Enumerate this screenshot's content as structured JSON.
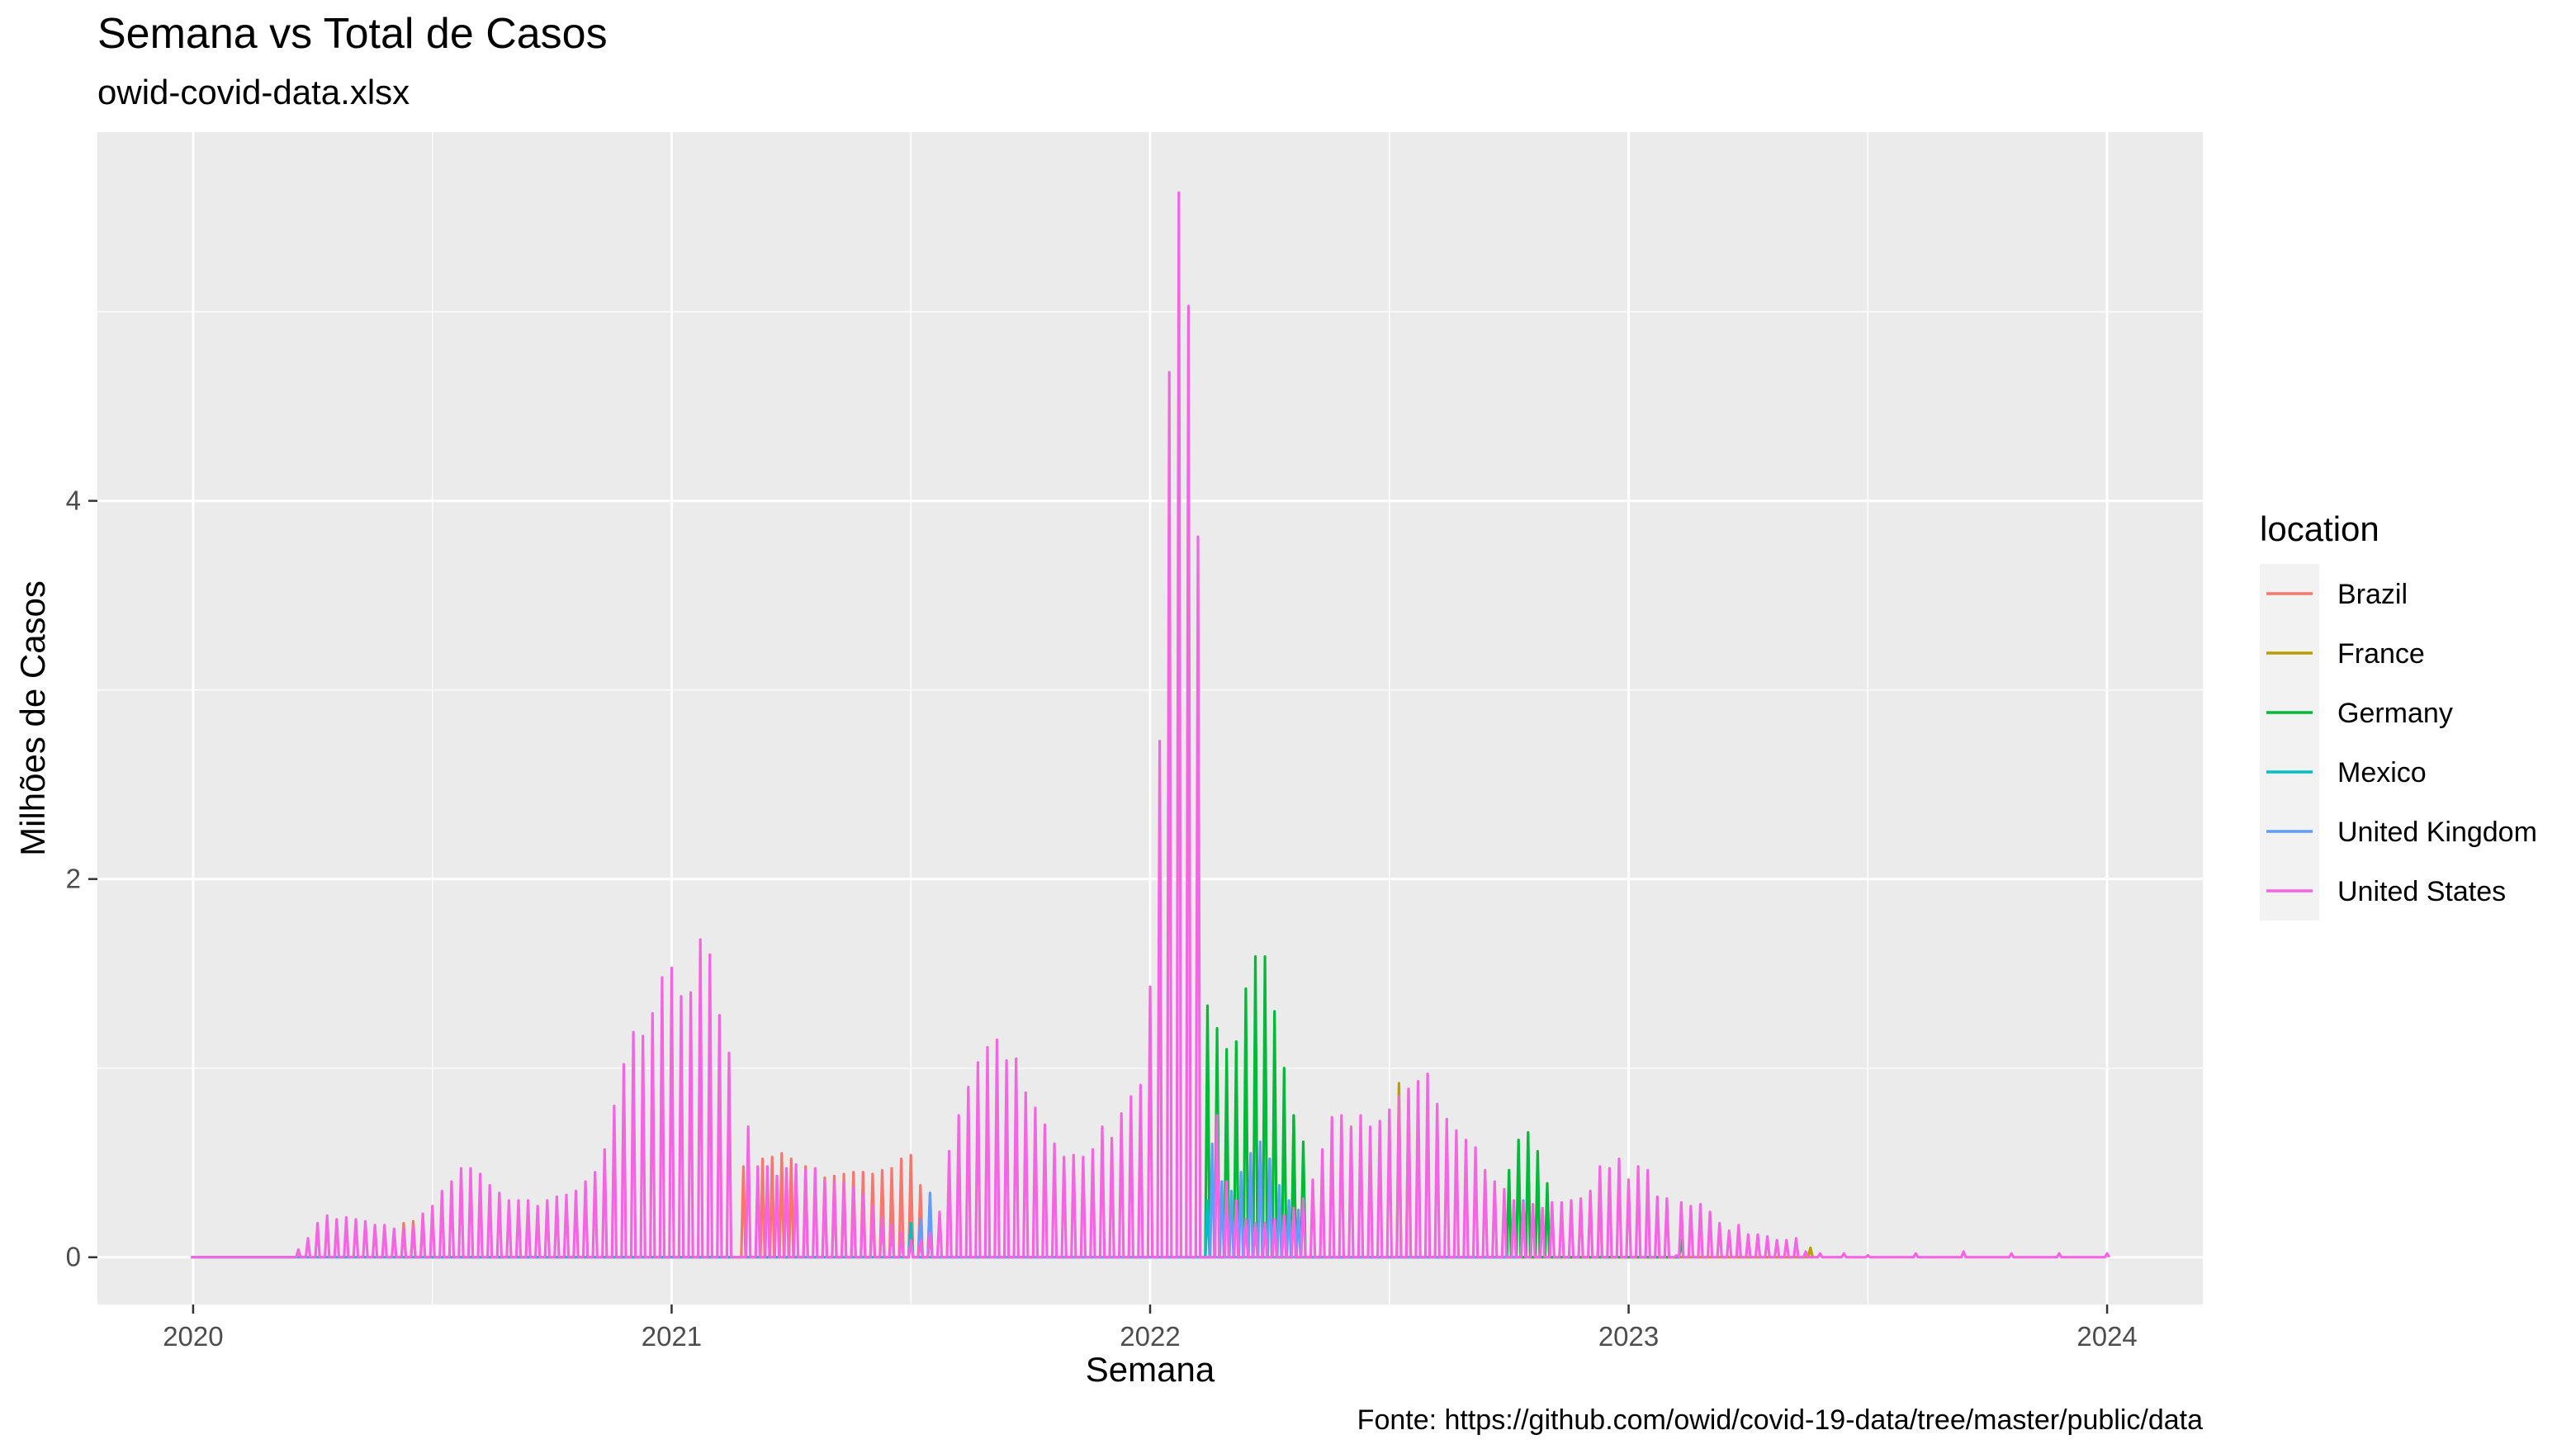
{
  "chart_data": {
    "type": "line",
    "title": "Semana vs Total de Casos",
    "subtitle": "owid-covid-data.xlsx",
    "xlabel": "Semana",
    "ylabel": "Milhões de Casos",
    "caption": "Fonte: https://github.com/owid/covid-19-data/tree/master/public/data",
    "x_ticks": [
      "2020",
      "2021",
      "2022",
      "2023",
      "2024"
    ],
    "y_ticks": [
      "0",
      "2",
      "4"
    ],
    "xlim": [
      2019.8,
      2024.2
    ],
    "ylim": [
      -0.25,
      5.95
    ],
    "grid": true,
    "legend": {
      "title": "location",
      "position": "right"
    },
    "x_unit": "year",
    "notes": "weekly totals; each week drawn as a spike from 0 to the weekly value and back",
    "series": [
      {
        "name": "Brazil",
        "color": "#F8766D",
        "points": [
          [
            2020.44,
            0.18
          ],
          [
            2020.46,
            0.19
          ],
          [
            2020.48,
            0.2
          ],
          [
            2021.15,
            0.48
          ],
          [
            2021.19,
            0.52
          ],
          [
            2021.21,
            0.53
          ],
          [
            2021.23,
            0.55
          ],
          [
            2021.25,
            0.52
          ],
          [
            2021.28,
            0.48
          ],
          [
            2021.32,
            0.42
          ],
          [
            2021.34,
            0.43
          ],
          [
            2021.36,
            0.44
          ],
          [
            2021.38,
            0.45
          ],
          [
            2021.4,
            0.45
          ],
          [
            2021.42,
            0.44
          ],
          [
            2021.44,
            0.46
          ],
          [
            2021.46,
            0.47
          ],
          [
            2021.48,
            0.52
          ],
          [
            2021.5,
            0.54
          ],
          [
            2021.52,
            0.38
          ],
          [
            2021.54,
            0.33
          ]
        ]
      },
      {
        "name": "France",
        "color": "#B79F00",
        "points": [
          [
            2022.25,
            0.52
          ],
          [
            2022.3,
            0.75
          ],
          [
            2022.52,
            0.92
          ],
          [
            2022.54,
            0.88
          ],
          [
            2022.94,
            0.4
          ],
          [
            2023.38,
            0.05
          ]
        ]
      },
      {
        "name": "Germany",
        "color": "#00BA38",
        "points": [
          [
            2022.12,
            1.33
          ],
          [
            2022.14,
            1.21
          ],
          [
            2022.16,
            1.1
          ],
          [
            2022.18,
            1.14
          ],
          [
            2022.2,
            1.42
          ],
          [
            2022.22,
            1.59
          ],
          [
            2022.24,
            1.59
          ],
          [
            2022.26,
            1.3
          ],
          [
            2022.28,
            1.0
          ],
          [
            2022.3,
            0.75
          ],
          [
            2022.32,
            0.61
          ],
          [
            2022.75,
            0.46
          ],
          [
            2022.77,
            0.62
          ],
          [
            2022.79,
            0.66
          ],
          [
            2022.81,
            0.56
          ],
          [
            2022.83,
            0.39
          ],
          [
            2023.11,
            0.09
          ]
        ]
      },
      {
        "name": "Mexico",
        "color": "#00BFC4",
        "points": [
          [
            2020.0,
            0.0
          ],
          [
            2021.5,
            0.18
          ],
          [
            2022.12,
            0.3
          ]
        ]
      },
      {
        "name": "United Kingdom",
        "color": "#619CFF",
        "points": [
          [
            2021.52,
            0.2
          ],
          [
            2021.54,
            0.34
          ],
          [
            2022.13,
            0.6
          ],
          [
            2022.15,
            0.4
          ],
          [
            2022.17,
            0.35
          ],
          [
            2022.19,
            0.45
          ],
          [
            2022.21,
            0.55
          ],
          [
            2022.23,
            0.61
          ],
          [
            2022.25,
            0.52
          ],
          [
            2022.27,
            0.38
          ],
          [
            2022.29,
            0.3
          ],
          [
            2022.31,
            0.25
          ],
          [
            2022.78,
            0.3
          ]
        ]
      },
      {
        "name": "United States",
        "color": "#F564E3",
        "points": [
          [
            2020.0,
            0.0
          ],
          [
            2020.1,
            0.0
          ],
          [
            2020.2,
            0.0
          ],
          [
            2020.22,
            0.04
          ],
          [
            2020.24,
            0.1
          ],
          [
            2020.26,
            0.18
          ],
          [
            2020.28,
            0.22
          ],
          [
            2020.3,
            0.2
          ],
          [
            2020.32,
            0.21
          ],
          [
            2020.34,
            0.2
          ],
          [
            2020.36,
            0.19
          ],
          [
            2020.38,
            0.17
          ],
          [
            2020.4,
            0.17
          ],
          [
            2020.42,
            0.15
          ],
          [
            2020.44,
            0.15
          ],
          [
            2020.46,
            0.16
          ],
          [
            2020.48,
            0.23
          ],
          [
            2020.5,
            0.27
          ],
          [
            2020.52,
            0.35
          ],
          [
            2020.54,
            0.4
          ],
          [
            2020.56,
            0.47
          ],
          [
            2020.58,
            0.47
          ],
          [
            2020.6,
            0.44
          ],
          [
            2020.62,
            0.38
          ],
          [
            2020.64,
            0.34
          ],
          [
            2020.66,
            0.3
          ],
          [
            2020.68,
            0.3
          ],
          [
            2020.7,
            0.3
          ],
          [
            2020.72,
            0.27
          ],
          [
            2020.74,
            0.3
          ],
          [
            2020.76,
            0.32
          ],
          [
            2020.78,
            0.33
          ],
          [
            2020.8,
            0.35
          ],
          [
            2020.82,
            0.4
          ],
          [
            2020.84,
            0.45
          ],
          [
            2020.86,
            0.57
          ],
          [
            2020.88,
            0.8
          ],
          [
            2020.9,
            1.02
          ],
          [
            2020.92,
            1.19
          ],
          [
            2020.94,
            1.17
          ],
          [
            2020.96,
            1.29
          ],
          [
            2020.98,
            1.48
          ],
          [
            2021.0,
            1.53
          ],
          [
            2021.02,
            1.38
          ],
          [
            2021.04,
            1.4
          ],
          [
            2021.06,
            1.68
          ],
          [
            2021.08,
            1.6
          ],
          [
            2021.1,
            1.28
          ],
          [
            2021.12,
            1.08
          ],
          [
            2021.14,
            0.0
          ],
          [
            2021.16,
            0.69
          ],
          [
            2021.18,
            0.48
          ],
          [
            2021.2,
            0.48
          ],
          [
            2021.22,
            0.43
          ],
          [
            2021.24,
            0.47
          ],
          [
            2021.26,
            0.49
          ],
          [
            2021.28,
            0.46
          ],
          [
            2021.3,
            0.47
          ],
          [
            2021.32,
            0.4
          ],
          [
            2021.34,
            0.4
          ],
          [
            2021.36,
            0.39
          ],
          [
            2021.38,
            0.37
          ],
          [
            2021.4,
            0.33
          ],
          [
            2021.42,
            0.27
          ],
          [
            2021.44,
            0.21
          ],
          [
            2021.46,
            0.17
          ],
          [
            2021.48,
            0.13
          ],
          [
            2021.5,
            0.09
          ],
          [
            2021.52,
            0.09
          ],
          [
            2021.54,
            0.13
          ],
          [
            2021.56,
            0.24
          ],
          [
            2021.58,
            0.56
          ],
          [
            2021.6,
            0.75
          ],
          [
            2021.62,
            0.9
          ],
          [
            2021.64,
            1.03
          ],
          [
            2021.66,
            1.11
          ],
          [
            2021.68,
            1.15
          ],
          [
            2021.7,
            1.04
          ],
          [
            2021.72,
            1.05
          ],
          [
            2021.74,
            0.87
          ],
          [
            2021.76,
            0.79
          ],
          [
            2021.78,
            0.7
          ],
          [
            2021.8,
            0.6
          ],
          [
            2021.82,
            0.53
          ],
          [
            2021.84,
            0.54
          ],
          [
            2021.86,
            0.53
          ],
          [
            2021.88,
            0.57
          ],
          [
            2021.9,
            0.69
          ],
          [
            2021.92,
            0.63
          ],
          [
            2021.94,
            0.76
          ],
          [
            2021.96,
            0.85
          ],
          [
            2021.98,
            0.91
          ],
          [
            2022.0,
            1.43
          ],
          [
            2022.02,
            2.73
          ],
          [
            2022.04,
            4.68
          ],
          [
            2022.06,
            5.63
          ],
          [
            2022.08,
            5.03
          ],
          [
            2022.1,
            3.81
          ],
          [
            2022.12,
            0.0
          ],
          [
            2022.14,
            0.75
          ],
          [
            2022.16,
            0.4
          ],
          [
            2022.18,
            0.3
          ],
          [
            2022.2,
            0.2
          ],
          [
            2022.22,
            0.18
          ],
          [
            2022.24,
            0.18
          ],
          [
            2022.26,
            0.2
          ],
          [
            2022.28,
            0.22
          ],
          [
            2022.3,
            0.26
          ],
          [
            2022.32,
            0.31
          ],
          [
            2022.34,
            0.41
          ],
          [
            2022.36,
            0.57
          ],
          [
            2022.38,
            0.74
          ],
          [
            2022.4,
            0.75
          ],
          [
            2022.42,
            0.69
          ],
          [
            2022.44,
            0.75
          ],
          [
            2022.46,
            0.69
          ],
          [
            2022.48,
            0.72
          ],
          [
            2022.5,
            0.78
          ],
          [
            2022.52,
            0.85
          ],
          [
            2022.54,
            0.89
          ],
          [
            2022.56,
            0.93
          ],
          [
            2022.58,
            0.97
          ],
          [
            2022.6,
            0.81
          ],
          [
            2022.62,
            0.73
          ],
          [
            2022.64,
            0.67
          ],
          [
            2022.66,
            0.62
          ],
          [
            2022.68,
            0.58
          ],
          [
            2022.7,
            0.46
          ],
          [
            2022.72,
            0.4
          ],
          [
            2022.74,
            0.36
          ],
          [
            2022.76,
            0.3
          ],
          [
            2022.78,
            0.29
          ],
          [
            2022.8,
            0.28
          ],
          [
            2022.82,
            0.26
          ],
          [
            2022.84,
            0.29
          ],
          [
            2022.86,
            0.29
          ],
          [
            2022.88,
            0.3
          ],
          [
            2022.9,
            0.31
          ],
          [
            2022.92,
            0.35
          ],
          [
            2022.94,
            0.48
          ],
          [
            2022.96,
            0.47
          ],
          [
            2022.98,
            0.52
          ],
          [
            2023.0,
            0.41
          ],
          [
            2023.02,
            0.48
          ],
          [
            2023.04,
            0.46
          ],
          [
            2023.06,
            0.32
          ],
          [
            2023.08,
            0.31
          ],
          [
            2023.1,
            0.01
          ],
          [
            2023.11,
            0.29
          ],
          [
            2023.13,
            0.27
          ],
          [
            2023.15,
            0.28
          ],
          [
            2023.17,
            0.24
          ],
          [
            2023.19,
            0.18
          ],
          [
            2023.21,
            0.14
          ],
          [
            2023.23,
            0.17
          ],
          [
            2023.25,
            0.12
          ],
          [
            2023.27,
            0.12
          ],
          [
            2023.29,
            0.11
          ],
          [
            2023.31,
            0.09
          ],
          [
            2023.33,
            0.09
          ],
          [
            2023.35,
            0.1
          ],
          [
            2023.37,
            0.03
          ],
          [
            2023.4,
            0.02
          ],
          [
            2023.45,
            0.02
          ],
          [
            2023.5,
            0.01
          ],
          [
            2023.6,
            0.02
          ],
          [
            2023.7,
            0.03
          ],
          [
            2023.8,
            0.02
          ],
          [
            2023.9,
            0.02
          ],
          [
            2024.0,
            0.02
          ]
        ]
      }
    ]
  }
}
